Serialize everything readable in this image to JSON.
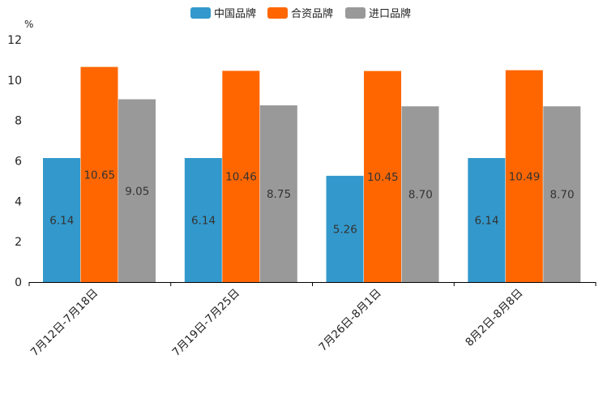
{
  "chart_data": {
    "type": "bar",
    "unit": "%",
    "categories": [
      "7月12日-7月18日",
      "7月19日-7月25日",
      "7月26日-8月1日",
      "8月2日-8月8日"
    ],
    "series": [
      {
        "name": "中国品牌",
        "color": "#3399cc",
        "values": [
          6.14,
          6.14,
          5.26,
          6.14
        ],
        "labels": [
          "6.14",
          "6.14",
          "5.26",
          "6.14"
        ]
      },
      {
        "name": "合资品牌",
        "color": "#ff6600",
        "values": [
          10.65,
          10.46,
          10.45,
          10.49
        ],
        "labels": [
          "10.65",
          "10.46",
          "10.45",
          "10.49"
        ]
      },
      {
        "name": "进口品牌",
        "color": "#999999",
        "values": [
          9.05,
          8.75,
          8.7,
          8.7
        ],
        "labels": [
          "9.05",
          "8.75",
          "8.70",
          "8.70"
        ]
      }
    ],
    "ylim": [
      0,
      12
    ],
    "yticks": [
      "0",
      "2",
      "4",
      "6",
      "8",
      "10",
      "12"
    ],
    "legend_position": "top-center",
    "grid": false
  }
}
